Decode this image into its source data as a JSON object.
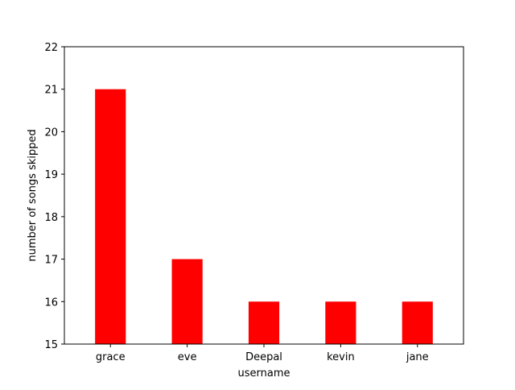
{
  "chart_data": {
    "type": "bar",
    "title": "",
    "xlabel": "username",
    "ylabel": "number of songs skipped",
    "categories": [
      "grace",
      "eve",
      "Deepal",
      "kevin",
      "jane"
    ],
    "values": [
      21,
      17,
      16,
      16,
      16
    ],
    "ylim": [
      15,
      22
    ],
    "yticks": [
      15,
      16,
      17,
      18,
      19,
      20,
      21,
      22
    ],
    "bar_color": "#ff0000",
    "grid": false,
    "legend": "none"
  }
}
